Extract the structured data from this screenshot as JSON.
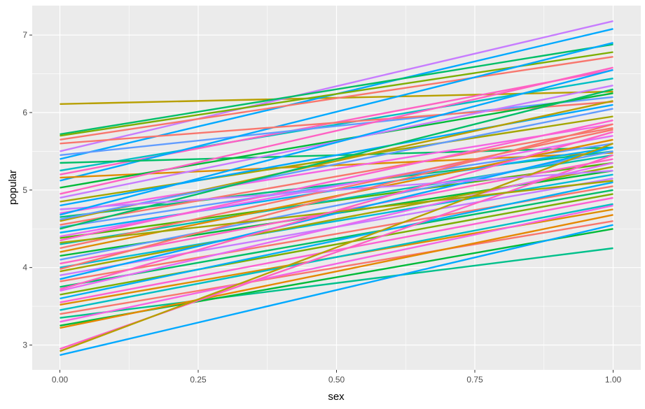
{
  "chart_data": {
    "type": "line",
    "title": "",
    "xlabel": "sex",
    "ylabel": "popular",
    "xlim": [
      -0.05,
      1.05
    ],
    "ylim": [
      2.68,
      7.38
    ],
    "x_ticks": [
      0.0,
      0.25,
      0.5,
      0.75,
      1.0
    ],
    "x_tick_labels": [
      "0.00",
      "0.25",
      "0.50",
      "0.75",
      "1.00"
    ],
    "y_ticks": [
      3,
      4,
      5,
      6,
      7
    ],
    "y_tick_labels": [
      "3",
      "4",
      "5",
      "6",
      "7"
    ],
    "grid": true,
    "legend": "none",
    "panel_background": "#ebebeb",
    "grid_color": "#ffffff",
    "x": [
      0,
      1
    ],
    "series": [
      {
        "color": "#b79f00",
        "values": [
          6.11,
          6.27
        ]
      },
      {
        "color": "#c77cff",
        "values": [
          5.5,
          7.18
        ]
      },
      {
        "color": "#00a9ff",
        "values": [
          5.4,
          7.08
        ]
      },
      {
        "color": "#00be67",
        "values": [
          5.72,
          6.88
        ]
      },
      {
        "color": "#f8766d",
        "values": [
          5.65,
          6.72
        ]
      },
      {
        "color": "#7cae00",
        "values": [
          5.7,
          6.78
        ]
      },
      {
        "color": "#00bfc4",
        "values": [
          5.25,
          6.44
        ]
      },
      {
        "color": "#ff61c3",
        "values": [
          5.2,
          6.55
        ]
      },
      {
        "color": "#619cff",
        "values": [
          5.45,
          6.2
        ]
      },
      {
        "color": "#00a9ff",
        "values": [
          5.12,
          6.9
        ]
      },
      {
        "color": "#00be67",
        "values": [
          5.35,
          5.55
        ]
      },
      {
        "color": "#de8c00",
        "values": [
          5.16,
          5.48
        ]
      },
      {
        "color": "#f8766d",
        "values": [
          5.6,
          6.14
        ]
      },
      {
        "color": "#00ba38",
        "values": [
          5.03,
          6.25
        ]
      },
      {
        "color": "#ff61c3",
        "values": [
          4.95,
          6.58
        ]
      },
      {
        "color": "#c77cff",
        "values": [
          4.9,
          6.35
        ]
      },
      {
        "color": "#a3a500",
        "values": [
          4.85,
          5.95
        ]
      },
      {
        "color": "#00a9ff",
        "values": [
          4.8,
          6.1
        ]
      },
      {
        "color": "#f564e3",
        "values": [
          4.7,
          5.85
        ]
      },
      {
        "color": "#00bf7d",
        "values": [
          4.65,
          5.5
        ]
      },
      {
        "color": "#b79f00",
        "values": [
          4.6,
          6.15
        ]
      },
      {
        "color": "#f8766d",
        "values": [
          4.55,
          5.8
        ]
      },
      {
        "color": "#619cff",
        "values": [
          4.52,
          5.6
        ]
      },
      {
        "color": "#00b0f6",
        "values": [
          4.45,
          5.55
        ]
      },
      {
        "color": "#e76bf3",
        "values": [
          4.4,
          5.7
        ]
      },
      {
        "color": "#53b400",
        "values": [
          4.38,
          5.35
        ]
      },
      {
        "color": "#fd61d1",
        "values": [
          4.35,
          5.9
        ]
      },
      {
        "color": "#00c0af",
        "values": [
          4.3,
          5.45
        ]
      },
      {
        "color": "#f8766d",
        "values": [
          4.25,
          5.78
        ]
      },
      {
        "color": "#de8c00",
        "values": [
          4.2,
          5.65
        ]
      },
      {
        "color": "#00ba38",
        "values": [
          4.15,
          5.25
        ]
      },
      {
        "color": "#619cff",
        "values": [
          4.1,
          5.5
        ]
      },
      {
        "color": "#ff61c3",
        "values": [
          4.05,
          5.4
        ]
      },
      {
        "color": "#00bcd8",
        "values": [
          4.0,
          5.2
        ]
      },
      {
        "color": "#a3a500",
        "values": [
          3.95,
          5.3
        ]
      },
      {
        "color": "#c77cff",
        "values": [
          3.9,
          5.15
        ]
      },
      {
        "color": "#00a9ff",
        "values": [
          3.85,
          5.55
        ]
      },
      {
        "color": "#f8766d",
        "values": [
          3.82,
          5.05
        ]
      },
      {
        "color": "#00be67",
        "values": [
          3.75,
          5.0
        ]
      },
      {
        "color": "#e76bf3",
        "values": [
          3.7,
          5.35
        ]
      },
      {
        "color": "#7cae00",
        "values": [
          3.65,
          4.95
        ]
      },
      {
        "color": "#00b0f6",
        "values": [
          3.6,
          5.1
        ]
      },
      {
        "color": "#fd61d1",
        "values": [
          3.55,
          4.9
        ]
      },
      {
        "color": "#de8c00",
        "values": [
          3.52,
          4.75
        ]
      },
      {
        "color": "#00bfc4",
        "values": [
          3.45,
          4.82
        ]
      },
      {
        "color": "#f8766d",
        "values": [
          3.4,
          4.6
        ]
      },
      {
        "color": "#00c08b",
        "values": [
          3.35,
          4.25
        ]
      },
      {
        "color": "#f564e3",
        "values": [
          3.3,
          4.8
        ]
      },
      {
        "color": "#00ba38",
        "values": [
          3.25,
          4.5
        ]
      },
      {
        "color": "#e58700",
        "values": [
          3.22,
          4.68
        ]
      },
      {
        "color": "#ff61c3",
        "values": [
          2.95,
          5.45
        ]
      },
      {
        "color": "#b79f00",
        "values": [
          2.92,
          5.6
        ]
      },
      {
        "color": "#00a9ff",
        "values": [
          2.87,
          4.55
        ]
      },
      {
        "color": "#619cff",
        "values": [
          4.62,
          6.05
        ]
      },
      {
        "color": "#00be67",
        "values": [
          4.5,
          6.3
        ]
      },
      {
        "color": "#c77cff",
        "values": [
          4.75,
          5.25
        ]
      },
      {
        "color": "#f8766d",
        "values": [
          3.98,
          5.85
        ]
      },
      {
        "color": "#00a9ff",
        "values": [
          4.68,
          6.55
        ]
      },
      {
        "color": "#a3a500",
        "values": [
          4.32,
          5.12
        ]
      },
      {
        "color": "#ff61c3",
        "values": [
          3.72,
          5.75
        ]
      }
    ]
  }
}
